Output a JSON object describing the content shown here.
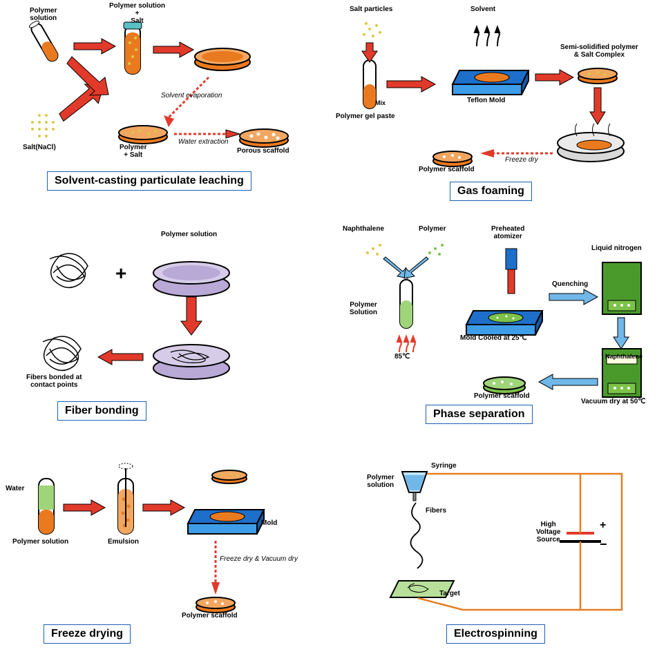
{
  "colors": {
    "orange": "#ea7a1f",
    "orangeDark": "#c95c0e",
    "red": "#e23a2a",
    "tube": "#ffffff",
    "salt": "#d9c946",
    "blueMold": "#1e6fc9",
    "blueMoldLight": "#3e9de8",
    "purple": "#b9a9d6",
    "green": "#7dc24a",
    "greenDark": "#4a9a2b",
    "lightBlue": "#6fb8e8",
    "box": "#1a5fb4",
    "wire": "#e67e22",
    "tealCap": "#5bc0c4",
    "gray": "#cfcfcf"
  },
  "p1": {
    "title": "Solvent-casting particulate leaching",
    "l1": "Polymer\nsolution",
    "l2": "Polymer solution\n+\nSalt",
    "l3": "Salt(NaCl)",
    "l4": "Solvent evaporation",
    "l5": "Polymer\n+  Salt",
    "l6": "Water extraction",
    "l7": "Porous scaffold"
  },
  "p2": {
    "title": "Gas foaming",
    "l1": "Salt particles",
    "l2": "Solvent",
    "l3": "Mix",
    "l4": "Polymer gel paste",
    "l5": "Teflon Mold",
    "l6": "Semi-solidified polymer\n& Salt Complex",
    "l7": "Polymer scaffold",
    "l8": "Freeze dry"
  },
  "p3": {
    "title": "Fiber bonding",
    "l1": "Polymer solution",
    "l2": "Fibers bonded at\ncontact points",
    "plus": "+"
  },
  "p4": {
    "title": "Phase separation",
    "l1": "Naphthalene",
    "l2": "Polymer",
    "l3": "Preheated\natomizer",
    "l4": "Liquid nitrogen",
    "l5": "Polymer\nSolution",
    "l6": "85℃",
    "l7": "Mold Cooled at 25℃",
    "l8": "Quenching",
    "l9": "Naphthalene",
    "l10": "Vacuum dry at 50℃",
    "l11": "Polymer scaffold"
  },
  "p5": {
    "title": "Freeze drying",
    "l1": "Water",
    "l2": "Polymer solution",
    "l3": "Emulsion",
    "l4": "Mold",
    "l5": "Freeze dry & Vacuum dry",
    "l6": "Polymer scaffold"
  },
  "p6": {
    "title": "Electrospinning",
    "l1": "Syringe",
    "l2": "Polymer\nsolution",
    "l3": "Fibers",
    "l4": "Target",
    "l5": "High\nVoltage\nSource",
    "plus": "+",
    "minus": "−"
  }
}
